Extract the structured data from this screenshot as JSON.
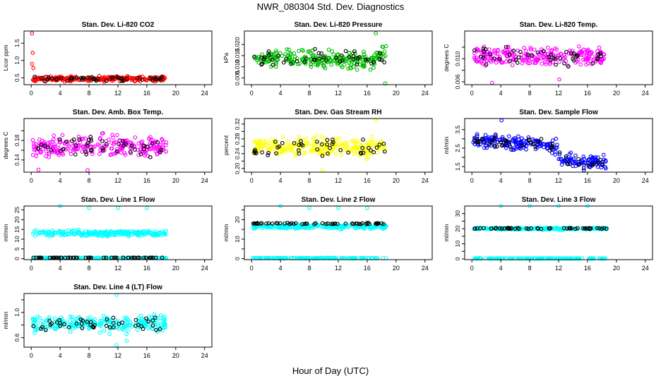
{
  "figure": {
    "title": "NWR_080304  Std. Dev. Diagnostics",
    "xlabel": "Hour of Day (UTC)"
  },
  "chart_data": [
    {
      "type": "scatter",
      "title": "Stan. Dev. Li-820 CO2",
      "ylabel": "Licor ppm",
      "xlim": [
        -1,
        25
      ],
      "ylim": [
        0.3,
        1.85
      ],
      "xticks": [
        0,
        4,
        8,
        12,
        16,
        20,
        24
      ],
      "yticks": [
        0.5,
        1.0,
        1.5
      ],
      "yticklabels": [
        "0.5",
        "1.0",
        "1.5"
      ],
      "color": "#ff0000",
      "series": [
        {
          "name": "main",
          "base": 0.47,
          "spread": 0.06
        }
      ],
      "outliers": [
        [
          0.1,
          1.78
        ],
        [
          0.2,
          1.22
        ],
        [
          0.1,
          0.9
        ],
        [
          0.3,
          0.78
        ]
      ]
    },
    {
      "type": "scatter",
      "title": "Stan. Dev. Li-820 Pressure",
      "ylabel": "kPa",
      "xlim": [
        -1,
        25
      ],
      "ylim": [
        0.002,
        0.026
      ],
      "xticks": [
        0,
        4,
        8,
        12,
        16,
        20,
        24
      ],
      "yticks": [
        0.005,
        0.01,
        0.015,
        0.02
      ],
      "yticklabels": [
        "0.005",
        "0.010",
        "0.015",
        "0.020"
      ],
      "color": "#00bb00",
      "series": [
        {
          "name": "main",
          "base": 0.0135,
          "spread": 0.003
        }
      ],
      "outliers": [
        [
          18.5,
          0.0025
        ],
        [
          17.2,
          0.025
        ]
      ]
    },
    {
      "type": "scatter",
      "title": "Stan. Dev. Li-820 Temp.",
      "ylabel": "degrees C",
      "xlim": [
        -1,
        25
      ],
      "ylim": [
        0.0055,
        0.0148
      ],
      "xticks": [
        0,
        4,
        8,
        12,
        16,
        20,
        24
      ],
      "yticks": [
        0.006,
        0.008,
        0.01,
        0.012
      ],
      "yticklabels": [
        "0.006",
        "",
        "0.010",
        ""
      ],
      "color": "#ff00ff",
      "series": [
        {
          "name": "main",
          "base": 0.0103,
          "spread": 0.0014
        }
      ],
      "outliers": [
        [
          2.8,
          0.0058
        ],
        [
          12.1,
          0.0064
        ]
      ]
    },
    {
      "type": "scatter",
      "title": "Stan. Dev. Amb. Box Temp.",
      "ylabel": "degrees C",
      "xlim": [
        -1,
        25
      ],
      "ylim": [
        0.115,
        0.225
      ],
      "xticks": [
        0,
        4,
        8,
        12,
        16,
        20,
        24
      ],
      "yticks": [
        0.14,
        0.16,
        0.18,
        0.2
      ],
      "yticklabels": [
        "0.14",
        "",
        "0.18",
        ""
      ],
      "color": "#ff00ff",
      "series": [
        {
          "name": "main",
          "base": 0.168,
          "spread": 0.018
        }
      ],
      "outliers": [
        [
          1.0,
          0.12
        ],
        [
          7.8,
          0.119
        ]
      ]
    },
    {
      "type": "scatter",
      "title": "Stan. Dev. Gas Stream RH",
      "ylabel": "percent",
      "xlim": [
        -1,
        25
      ],
      "ylim": [
        0.19,
        0.335
      ],
      "xticks": [
        0,
        4,
        8,
        12,
        16,
        20,
        24
      ],
      "yticks": [
        0.2,
        0.22,
        0.24,
        0.26,
        0.28,
        0.3,
        0.32
      ],
      "yticklabels": [
        "0.20",
        "",
        "0.24",
        "",
        "0.28",
        "",
        "0.32"
      ],
      "color": "#ffff00",
      "series": [
        {
          "name": "main",
          "base": 0.258,
          "spread": 0.022
        }
      ],
      "outliers": [
        [
          9.8,
          0.195
        ],
        [
          17.2,
          0.33
        ]
      ]
    },
    {
      "type": "scatter",
      "title": "Stan. Dev. Sample Flow",
      "ylabel": "ml/min",
      "xlim": [
        -1,
        25
      ],
      "ylim": [
        1.2,
        4.1
      ],
      "xticks": [
        0,
        4,
        8,
        12,
        16,
        20,
        24
      ],
      "yticks": [
        1.5,
        2.0,
        2.5,
        3.0,
        3.5
      ],
      "yticklabels": [
        "1.5",
        "",
        "2.5",
        "",
        "3.5"
      ],
      "color": "#0000ff",
      "series": [
        {
          "name": "main",
          "base": 2.9,
          "spread": 0.3
        }
      ],
      "outliers": [
        [
          4.1,
          4.0
        ],
        [
          15.5,
          1.3
        ]
      ]
    },
    {
      "type": "scatter",
      "title": "Stan. Dev. Line 1 Flow",
      "ylabel": "ml/min",
      "xlim": [
        -1,
        25
      ],
      "ylim": [
        -0.5,
        27
      ],
      "xticks": [
        0,
        4,
        8,
        12,
        16,
        20,
        24
      ],
      "yticks": [
        0,
        5,
        10,
        15,
        20,
        25
      ],
      "yticklabels": [
        "0",
        "5",
        "10",
        "15",
        "20",
        "25"
      ],
      "color": "#00ffff",
      "series": [
        {
          "name": "upper",
          "base": 13,
          "spread": 1.2
        },
        {
          "name": "lower",
          "base": 0.4,
          "spread": 0.1
        }
      ],
      "outliers": [
        [
          4,
          27
        ],
        [
          8,
          26
        ],
        [
          12,
          26
        ],
        [
          16,
          26
        ]
      ]
    },
    {
      "type": "scatter",
      "title": "Stan. Dev. Line 2 Flow",
      "ylabel": "ml/min",
      "xlim": [
        -1,
        25
      ],
      "ylim": [
        -0.5,
        27
      ],
      "xticks": [
        0,
        4,
        8,
        12,
        16,
        20,
        24
      ],
      "yticks": [
        0,
        5,
        10,
        15,
        20,
        25
      ],
      "yticklabels": [
        "0",
        "",
        "10",
        "",
        "20",
        ""
      ],
      "color": "#00ffff",
      "series": [
        {
          "name": "upper",
          "base": 16.5,
          "spread": 1.0
        },
        {
          "name": "black",
          "base": 18,
          "spread": 0.3
        },
        {
          "name": "lower",
          "base": 0.3,
          "spread": 0.1
        }
      ],
      "outliers": [
        [
          4,
          27
        ],
        [
          8,
          26
        ],
        [
          12,
          26
        ],
        [
          16,
          26
        ]
      ]
    },
    {
      "type": "scatter",
      "title": "Stan. Dev. Line 3 Flow",
      "ylabel": "ml/min",
      "xlim": [
        -1,
        25
      ],
      "ylim": [
        -0.5,
        35
      ],
      "xticks": [
        0,
        4,
        8,
        12,
        16,
        20,
        24
      ],
      "yticks": [
        0,
        5,
        10,
        15,
        20,
        25,
        30
      ],
      "yticklabels": [
        "0",
        "",
        "10",
        "",
        "20",
        "",
        "30"
      ],
      "color": "#00ffff",
      "series": [
        {
          "name": "upper",
          "base": 20,
          "spread": 0.6
        },
        {
          "name": "black",
          "base": 20.2,
          "spread": 0.3
        },
        {
          "name": "lower",
          "base": 0.3,
          "spread": 0.1
        }
      ],
      "outliers": [
        [
          4,
          35
        ],
        [
          8,
          35
        ],
        [
          12,
          35
        ],
        [
          16,
          35
        ]
      ]
    },
    {
      "type": "scatter",
      "title": "Stan. Dev. Line 4 (LT) Flow",
      "ylabel": "ml/min",
      "xlim": [
        -1,
        25
      ],
      "ylim": [
        0.45,
        1.3
      ],
      "xticks": [
        0,
        4,
        8,
        12,
        16,
        20,
        24
      ],
      "yticks": [
        0.6,
        0.8,
        1.0,
        1.2
      ],
      "yticklabels": [
        "0.6",
        "",
        "1.0",
        ""
      ],
      "color": "#00ffff",
      "series": [
        {
          "name": "main",
          "base": 0.82,
          "spread": 0.1
        }
      ],
      "outliers": [
        [
          11.8,
          1.28
        ],
        [
          11.8,
          0.48
        ],
        [
          13.2,
          0.55
        ]
      ]
    }
  ]
}
